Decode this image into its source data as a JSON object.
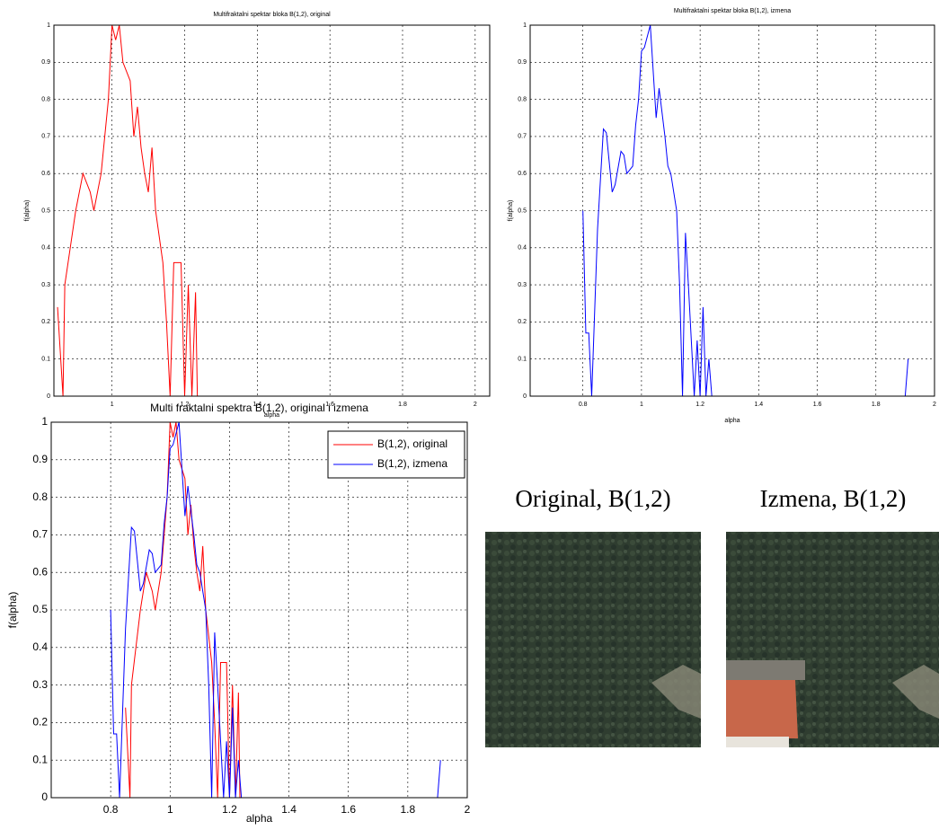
{
  "chart_data": [
    {
      "type": "line",
      "title": "Multifraktalni spektar bloka B(1,2), original",
      "xlabel": "alpha",
      "ylabel": "f(alpha)",
      "xlim": [
        0.84,
        2.04
      ],
      "ylim": [
        0,
        1
      ],
      "xticks": [
        1,
        1.2,
        1.4,
        1.6,
        1.8,
        2
      ],
      "yticks": [
        0,
        0.1,
        0.2,
        0.3,
        0.4,
        0.5,
        0.6,
        0.7,
        0.8,
        0.9,
        1
      ],
      "grid": true,
      "series": [
        {
          "color": "#ff0000",
          "x": [
            0.85,
            0.865,
            0.87,
            0.9,
            0.92,
            0.94,
            0.95,
            0.97,
            0.99,
            1.0,
            1.01,
            1.02,
            1.03,
            1.05,
            1.06,
            1.07,
            1.08,
            1.09,
            1.1,
            1.11,
            1.12,
            1.14,
            1.15,
            1.16,
            1.17,
            1.19,
            1.2,
            1.21,
            1.22,
            1.23,
            1.235,
            1.95
          ],
          "values": [
            0.24,
            0,
            0.3,
            0.5,
            0.6,
            0.55,
            0.5,
            0.6,
            0.8,
            1.0,
            0.96,
            1.0,
            0.9,
            0.85,
            0.7,
            0.78,
            0.67,
            0.6,
            0.55,
            0.67,
            0.5,
            0.36,
            0.2,
            0,
            0.36,
            0.36,
            0,
            0.3,
            0,
            0.28,
            0,
            0
          ]
        }
      ]
    },
    {
      "type": "line",
      "title": "Multifraktalni spektar bloka B(1,2), izmena",
      "xlabel": "alpha",
      "ylabel": "f(alpha)",
      "xlim": [
        0.62,
        2
      ],
      "ylim": [
        0,
        1
      ],
      "xticks": [
        0.8,
        1,
        1.2,
        1.4,
        1.6,
        1.8,
        2
      ],
      "yticks": [
        0,
        0.1,
        0.2,
        0.3,
        0.4,
        0.5,
        0.6,
        0.7,
        0.8,
        0.9,
        1
      ],
      "grid": true,
      "series": [
        {
          "color": "#0000ff",
          "x": [
            0.8,
            0.81,
            0.82,
            0.83,
            0.85,
            0.87,
            0.88,
            0.9,
            0.91,
            0.93,
            0.94,
            0.95,
            0.97,
            0.98,
            0.99,
            1.0,
            1.01,
            1.03,
            1.05,
            1.06,
            1.08,
            1.09,
            1.1,
            1.12,
            1.13,
            1.14,
            1.15,
            1.16,
            1.18,
            1.19,
            1.2,
            1.21,
            1.22,
            1.23,
            1.24,
            1.9,
            1.91
          ],
          "values": [
            0.5,
            0.17,
            0.17,
            0,
            0.45,
            0.72,
            0.71,
            0.55,
            0.57,
            0.66,
            0.65,
            0.6,
            0.62,
            0.73,
            0.8,
            0.93,
            0.94,
            1.0,
            0.75,
            0.83,
            0.7,
            0.62,
            0.6,
            0.5,
            0.3,
            0,
            0.44,
            0.3,
            0,
            0.15,
            0,
            0.24,
            0,
            0.1,
            0,
            0,
            0.1
          ]
        }
      ]
    },
    {
      "type": "line",
      "title": "Multi fraktalni spektra B(1,2), original i izmena",
      "xlabel": "alpha",
      "ylabel": "f(alpha)",
      "xlim": [
        0.6,
        2
      ],
      "ylim": [
        0,
        1
      ],
      "xticks": [
        0.8,
        1,
        1.2,
        1.4,
        1.6,
        1.8,
        2
      ],
      "yticks": [
        0,
        0.1,
        0.2,
        0.3,
        0.4,
        0.5,
        0.6,
        0.7,
        0.8,
        0.9,
        1
      ],
      "grid": true,
      "legend": "northeast",
      "series": [
        {
          "name": "B(1,2), original",
          "color": "#ff0000",
          "x": [
            0.85,
            0.865,
            0.87,
            0.9,
            0.92,
            0.94,
            0.95,
            0.97,
            0.99,
            1.0,
            1.01,
            1.02,
            1.03,
            1.05,
            1.06,
            1.07,
            1.08,
            1.09,
            1.1,
            1.11,
            1.12,
            1.14,
            1.15,
            1.16,
            1.17,
            1.19,
            1.2,
            1.21,
            1.22,
            1.23,
            1.235,
            1.95
          ],
          "values": [
            0.24,
            0,
            0.3,
            0.5,
            0.6,
            0.55,
            0.5,
            0.6,
            0.8,
            1.0,
            0.96,
            1.0,
            0.9,
            0.85,
            0.7,
            0.78,
            0.67,
            0.6,
            0.55,
            0.67,
            0.5,
            0.36,
            0.2,
            0,
            0.36,
            0.36,
            0,
            0.3,
            0,
            0.28,
            0,
            0
          ]
        },
        {
          "name": "B(1,2), izmena",
          "color": "#0000ff",
          "x": [
            0.8,
            0.81,
            0.82,
            0.83,
            0.85,
            0.87,
            0.88,
            0.9,
            0.91,
            0.93,
            0.94,
            0.95,
            0.97,
            0.98,
            0.99,
            1.0,
            1.01,
            1.03,
            1.05,
            1.06,
            1.08,
            1.09,
            1.1,
            1.12,
            1.13,
            1.14,
            1.15,
            1.16,
            1.18,
            1.19,
            1.2,
            1.21,
            1.22,
            1.23,
            1.24,
            1.9,
            1.91
          ],
          "values": [
            0.5,
            0.17,
            0.17,
            0,
            0.45,
            0.72,
            0.71,
            0.55,
            0.57,
            0.66,
            0.65,
            0.6,
            0.62,
            0.73,
            0.8,
            0.93,
            0.94,
            1.0,
            0.75,
            0.83,
            0.7,
            0.62,
            0.6,
            0.5,
            0.3,
            0,
            0.44,
            0.3,
            0,
            0.15,
            0,
            0.24,
            0,
            0.1,
            0,
            0,
            0.1
          ]
        }
      ]
    }
  ],
  "photos": [
    {
      "caption": "Original, B(1,2)",
      "color": "#ff0000"
    },
    {
      "caption": "Izmena, B(1,2)",
      "color": "#2e75b6"
    }
  ]
}
